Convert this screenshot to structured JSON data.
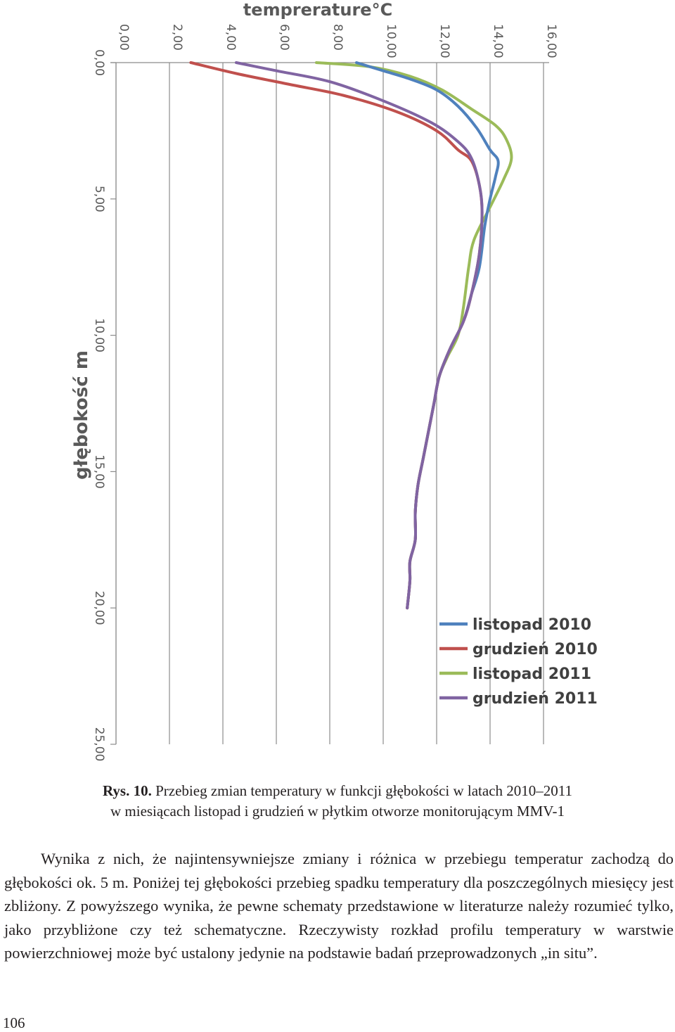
{
  "chart_data": {
    "type": "line",
    "orientation": "depth-profile, rotated 90 degrees (temperature axis on top, depth axis on the left, labels drawn rotated)",
    "x_label": "temprerature°C",
    "y_label": "głębokość m",
    "x_ticks": [
      "0,00",
      "2,00",
      "4,00",
      "6,00",
      "8,00",
      "10,00",
      "12,00",
      "14,00",
      "16,00"
    ],
    "y_ticks": [
      "0,00",
      "5,00",
      "10,00",
      "15,00",
      "20,00",
      "25,00"
    ],
    "x_range": [
      0,
      16
    ],
    "y_range": [
      0,
      25
    ],
    "grid": "vertical lines at each temperature tick",
    "legend_position": "bottom-right",
    "series": [
      {
        "name": "listopad 2010",
        "color": "#4f81bd",
        "points": [
          [
            9.0,
            0.0
          ],
          [
            10.0,
            0.3
          ],
          [
            11.0,
            0.6
          ],
          [
            12.0,
            1.0
          ],
          [
            12.8,
            1.6
          ],
          [
            13.5,
            2.4
          ],
          [
            14.0,
            3.2
          ],
          [
            14.3,
            3.6
          ],
          [
            14.2,
            4.2
          ],
          [
            14.0,
            5.0
          ],
          [
            13.8,
            6.0
          ],
          [
            13.6,
            7.5
          ],
          [
            13.3,
            8.5
          ],
          [
            13.0,
            9.5
          ],
          [
            12.5,
            10.5
          ],
          [
            12.1,
            11.5
          ],
          [
            11.9,
            12.5
          ],
          [
            11.7,
            13.5
          ],
          [
            11.5,
            14.5
          ],
          [
            11.3,
            15.5
          ],
          [
            11.2,
            16.5
          ],
          [
            11.2,
            17.5
          ],
          [
            11.0,
            18.3
          ],
          [
            11.0,
            19.0
          ],
          [
            10.9,
            20.0
          ]
        ]
      },
      {
        "name": "grudzień 2010",
        "color": "#c0504d",
        "points": [
          [
            2.8,
            0.0
          ],
          [
            4.5,
            0.4
          ],
          [
            6.5,
            0.8
          ],
          [
            8.5,
            1.2
          ],
          [
            10.5,
            1.8
          ],
          [
            12.0,
            2.5
          ],
          [
            12.8,
            3.2
          ],
          [
            13.3,
            3.6
          ],
          [
            13.6,
            4.5
          ],
          [
            13.7,
            5.5
          ],
          [
            13.6,
            7.0
          ],
          [
            13.3,
            8.5
          ],
          [
            13.0,
            9.5
          ],
          [
            12.5,
            10.5
          ],
          [
            12.1,
            11.5
          ],
          [
            11.9,
            12.5
          ],
          [
            11.7,
            13.5
          ],
          [
            11.5,
            14.5
          ],
          [
            11.3,
            15.5
          ],
          [
            11.2,
            16.5
          ],
          [
            11.2,
            17.5
          ],
          [
            11.0,
            18.3
          ],
          [
            11.0,
            19.0
          ],
          [
            10.9,
            20.0
          ]
        ]
      },
      {
        "name": "listopad 2011",
        "color": "#9bbb59",
        "points": [
          [
            7.5,
            0.0
          ],
          [
            9.5,
            0.15
          ],
          [
            11.0,
            0.5
          ],
          [
            12.2,
            1.0
          ],
          [
            13.3,
            1.7
          ],
          [
            14.2,
            2.3
          ],
          [
            14.6,
            2.8
          ],
          [
            14.8,
            3.5
          ],
          [
            14.5,
            4.3
          ],
          [
            14.0,
            5.3
          ],
          [
            13.4,
            6.5
          ],
          [
            13.2,
            7.5
          ],
          [
            13.0,
            9.0
          ],
          [
            12.8,
            10.0
          ],
          [
            12.4,
            10.8
          ],
          [
            12.1,
            11.5
          ],
          [
            11.9,
            12.5
          ],
          [
            11.7,
            13.5
          ],
          [
            11.5,
            14.5
          ],
          [
            11.3,
            15.5
          ],
          [
            11.2,
            16.5
          ],
          [
            11.2,
            17.5
          ],
          [
            11.0,
            18.3
          ],
          [
            11.0,
            19.0
          ],
          [
            10.9,
            20.0
          ]
        ]
      },
      {
        "name": "grudzień 2011",
        "color": "#8064a2",
        "points": [
          [
            4.5,
            0.0
          ],
          [
            6.0,
            0.3
          ],
          [
            8.0,
            0.7
          ],
          [
            10.0,
            1.4
          ],
          [
            11.8,
            2.2
          ],
          [
            12.8,
            2.9
          ],
          [
            13.3,
            3.5
          ],
          [
            13.6,
            4.5
          ],
          [
            13.7,
            5.5
          ],
          [
            13.6,
            7.0
          ],
          [
            13.3,
            8.5
          ],
          [
            13.0,
            9.5
          ],
          [
            12.5,
            10.5
          ],
          [
            12.1,
            11.5
          ],
          [
            11.9,
            12.5
          ],
          [
            11.7,
            13.5
          ],
          [
            11.5,
            14.5
          ],
          [
            11.3,
            15.5
          ],
          [
            11.2,
            16.5
          ],
          [
            11.2,
            17.5
          ],
          [
            11.0,
            18.3
          ],
          [
            11.0,
            19.0
          ],
          [
            10.9,
            20.0
          ]
        ]
      }
    ]
  },
  "caption": {
    "label": "Rys. 10.",
    "line1": "Przebieg zmian temperatury w funkcji głębokości w latach 2010–2011",
    "line2": "w miesiącach listopad i grudzień w płytkim otworze monitorującym MMV-1"
  },
  "body_text": "Wynika z nich, że najintensywniejsze zmiany i różnica w przebiegu temperatur zachodzą do głębokości ok. 5 m. Poniżej tej głębokości przebieg spadku temperatury dla poszczególnych miesięcy jest zbliżony. Z powyższego wynika, że pewne schematy przedstawione w literaturze należy rozumieć tylko, jako przybliżone czy też schematyczne. Rzeczywisty rozkład profilu temperatury w warstwie powierzchniowej może być ustalony jedynie na podstawie badań przeprowadzonych „in situ”.",
  "page_number": "106"
}
